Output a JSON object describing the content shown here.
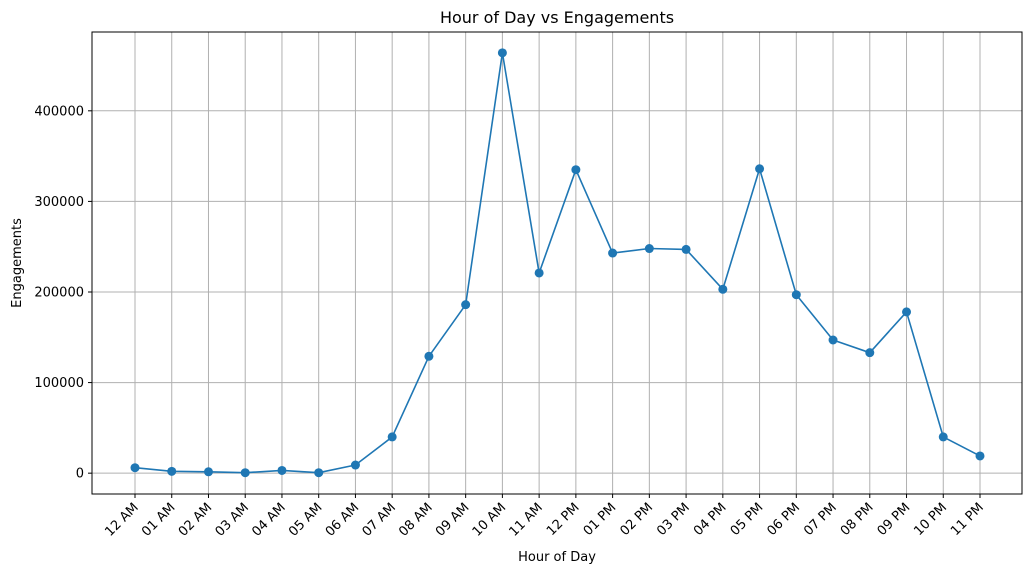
{
  "chart_data": {
    "type": "line",
    "title": "Hour of Day vs Engagements",
    "xlabel": "Hour of Day",
    "ylabel": "Engagements",
    "categories": [
      "12 AM",
      "01 AM",
      "02 AM",
      "03 AM",
      "04 AM",
      "05 AM",
      "06 AM",
      "07 AM",
      "08 AM",
      "09 AM",
      "10 AM",
      "11 AM",
      "12 PM",
      "01 PM",
      "02 PM",
      "03 PM",
      "04 PM",
      "05 PM",
      "06 PM",
      "07 PM",
      "08 PM",
      "09 PM",
      "10 PM",
      "11 PM"
    ],
    "series": [
      {
        "values": [
          6000,
          2000,
          1500,
          500,
          3000,
          500,
          9000,
          40000,
          129000,
          186000,
          464000,
          221000,
          335000,
          243000,
          248000,
          247000,
          203000,
          336000,
          197000,
          147000,
          133000,
          178000,
          40000,
          19000
        ],
        "color": "#1f77b4",
        "marker": "circle"
      }
    ],
    "yticks": [
      0,
      100000,
      200000,
      300000,
      400000
    ],
    "ylim": [
      -23000,
      487000
    ],
    "grid": true,
    "legend": "none"
  }
}
